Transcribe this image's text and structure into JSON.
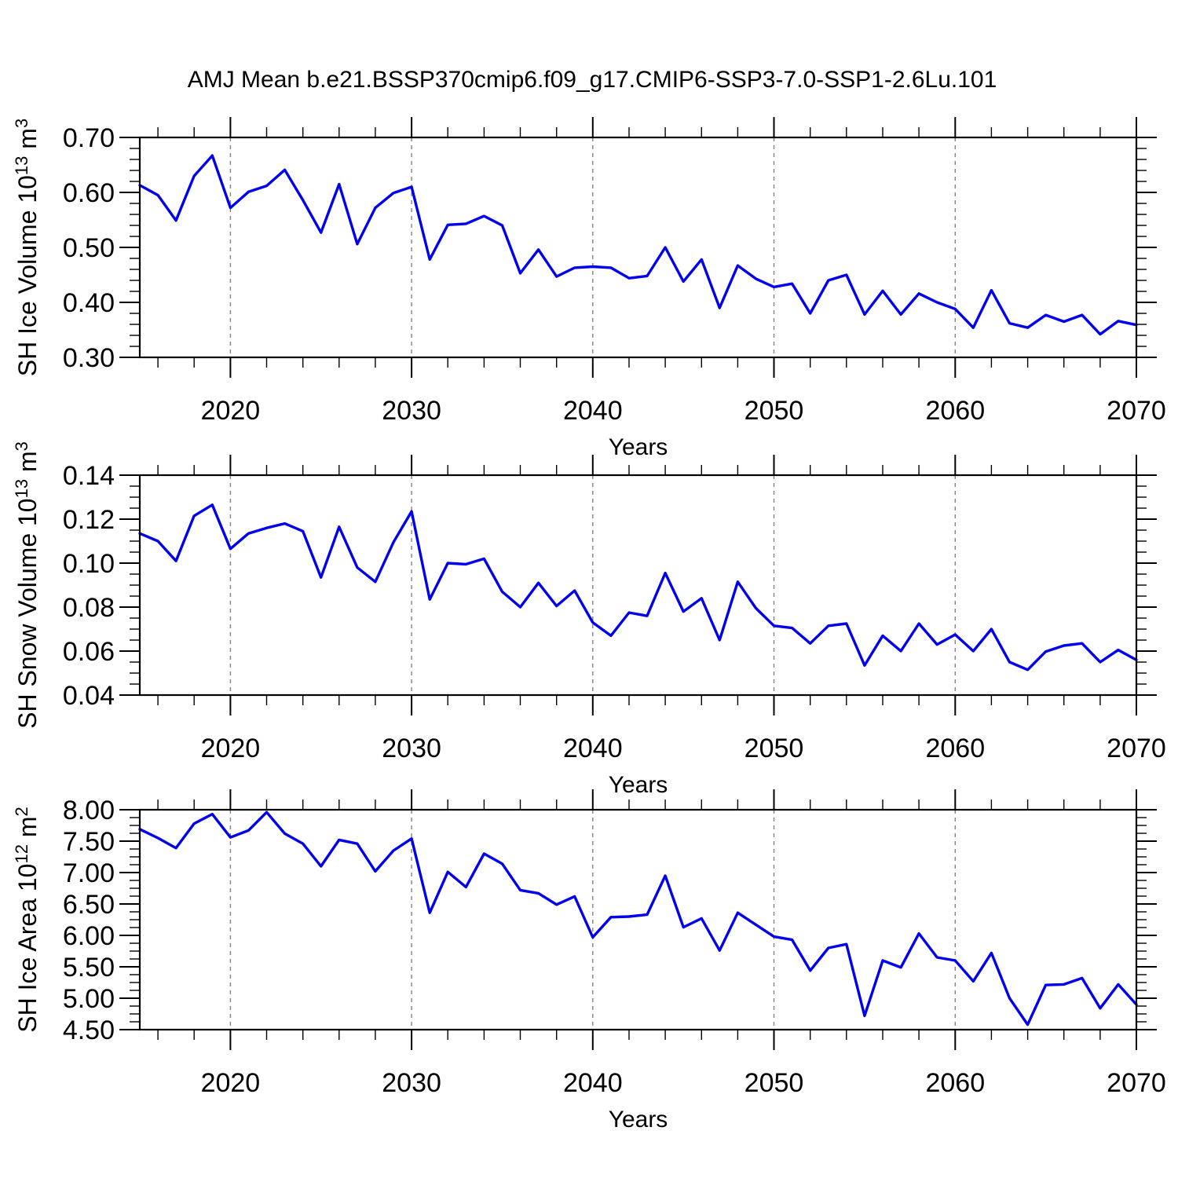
{
  "title": "AMJ Mean b.e21.BSSP370cmip6.f09_g17.CMIP6-SSP3-7.0-SSP1-2.6Lu.101",
  "colors": {
    "line": "#0000ee",
    "grid": "#828282",
    "axis": "#000000",
    "text": "#000000",
    "background": "#ffffff"
  },
  "chart_data": {
    "type": "line",
    "x_axis": {
      "label": "Years",
      "range": [
        2015,
        2070
      ],
      "ticks": [
        2020,
        2030,
        2040,
        2050,
        2060,
        2070
      ],
      "tick_labels": [
        "2020",
        "2030",
        "2040",
        "2050",
        "2060",
        "2070"
      ],
      "minor_step_years": 2,
      "grid_at": [
        2020,
        2030,
        2040,
        2050,
        2060
      ],
      "grid_style": "dashed"
    },
    "years": [
      2015,
      2016,
      2017,
      2018,
      2019,
      2020,
      2021,
      2022,
      2023,
      2024,
      2025,
      2026,
      2027,
      2028,
      2029,
      2030,
      2031,
      2032,
      2033,
      2034,
      2035,
      2036,
      2037,
      2038,
      2039,
      2040,
      2041,
      2042,
      2043,
      2044,
      2045,
      2046,
      2047,
      2048,
      2049,
      2050,
      2051,
      2052,
      2053,
      2054,
      2055,
      2056,
      2057,
      2058,
      2059,
      2060,
      2061,
      2062,
      2063,
      2064,
      2065,
      2066,
      2067,
      2068,
      2069,
      2070
    ],
    "panels": [
      {
        "name": "SH Ice Volume",
        "slug": "sh-ice-volume",
        "ylabel": "SH Ice Volume 10¹³ m³",
        "ylabel_parts": [
          {
            "text": "SH Ice Volume 10"
          },
          {
            "text": "13",
            "sup": true
          },
          {
            "text": " m"
          },
          {
            "text": "3",
            "sup": true
          }
        ],
        "xlabel": "Years",
        "ylim": [
          0.3,
          0.7
        ],
        "ytick_values": [
          0.7,
          0.6,
          0.5,
          0.4,
          0.3
        ],
        "ytick_labels": [
          "0.70",
          "0.60",
          "0.50",
          "0.40",
          "0.30"
        ],
        "yminor_per_major": 4,
        "values": [
          0.613,
          0.595,
          0.549,
          0.63,
          0.667,
          0.572,
          0.601,
          0.612,
          0.641,
          0.586,
          0.527,
          0.615,
          0.506,
          0.572,
          0.599,
          0.61,
          0.478,
          0.541,
          0.543,
          0.557,
          0.54,
          0.453,
          0.496,
          0.447,
          0.463,
          0.465,
          0.463,
          0.444,
          0.448,
          0.5,
          0.438,
          0.478,
          0.39,
          0.467,
          0.443,
          0.428,
          0.434,
          0.38,
          0.44,
          0.45,
          0.378,
          0.421,
          0.378,
          0.416,
          0.4,
          0.388,
          0.354,
          0.422,
          0.362,
          0.354,
          0.377,
          0.365,
          0.377,
          0.342,
          0.366,
          0.359
        ]
      },
      {
        "name": "SH Snow Volume",
        "slug": "sh-snow-volume",
        "ylabel": "SH Snow Volume 10¹³ m³",
        "ylabel_parts": [
          {
            "text": "SH Snow Volume 10"
          },
          {
            "text": "13",
            "sup": true
          },
          {
            "text": " m"
          },
          {
            "text": "3",
            "sup": true
          }
        ],
        "xlabel": "Years",
        "ylim": [
          0.04,
          0.14
        ],
        "ytick_values": [
          0.14,
          0.12,
          0.1,
          0.08,
          0.06,
          0.04
        ],
        "ytick_labels": [
          "0.14",
          "0.12",
          "0.10",
          "0.08",
          "0.06",
          "0.04"
        ],
        "yminor_per_major": 3,
        "values": [
          0.1135,
          0.11,
          0.101,
          0.1215,
          0.1265,
          0.1065,
          0.1135,
          0.116,
          0.118,
          0.1145,
          0.0935,
          0.1165,
          0.098,
          0.0915,
          0.1095,
          0.1235,
          0.0835,
          0.1,
          0.0995,
          0.102,
          0.087,
          0.08,
          0.091,
          0.0805,
          0.0875,
          0.073,
          0.067,
          0.0775,
          0.076,
          0.0955,
          0.078,
          0.084,
          0.065,
          0.0915,
          0.0795,
          0.0715,
          0.0705,
          0.0635,
          0.0715,
          0.0725,
          0.0535,
          0.067,
          0.06,
          0.0725,
          0.063,
          0.0675,
          0.06,
          0.07,
          0.055,
          0.0515,
          0.0598,
          0.0625,
          0.0635,
          0.055,
          0.0605,
          0.056
        ]
      },
      {
        "name": "SH Ice Area",
        "slug": "sh-ice-area",
        "ylabel": "SH Ice Area 10¹² m²",
        "ylabel_parts": [
          {
            "text": "SH Ice Area 10"
          },
          {
            "text": "12",
            "sup": true
          },
          {
            "text": " m"
          },
          {
            "text": "2",
            "sup": true
          }
        ],
        "xlabel": "Years",
        "ylim": [
          4.5,
          8.0
        ],
        "ytick_values": [
          8.0,
          7.5,
          7.0,
          6.5,
          6.0,
          5.5,
          5.0,
          4.5
        ],
        "ytick_labels": [
          "8.00",
          "7.50",
          "7.00",
          "6.50",
          "6.00",
          "5.50",
          "5.00",
          "4.50"
        ],
        "yminor_per_major": 3,
        "values": [
          7.69,
          7.55,
          7.39,
          7.78,
          7.93,
          7.56,
          7.67,
          7.96,
          7.62,
          7.46,
          7.1,
          7.52,
          7.46,
          7.02,
          7.35,
          7.54,
          6.36,
          7.01,
          6.77,
          7.3,
          7.14,
          6.72,
          6.67,
          6.49,
          6.62,
          5.97,
          6.29,
          6.3,
          6.33,
          6.95,
          6.13,
          6.27,
          5.76,
          6.36,
          6.17,
          5.98,
          5.93,
          5.44,
          5.8,
          5.86,
          4.72,
          5.6,
          5.49,
          6.03,
          5.65,
          5.6,
          5.27,
          5.72,
          5.0,
          4.58,
          5.21,
          5.22,
          5.32,
          4.84,
          5.22,
          4.9
        ]
      }
    ]
  }
}
